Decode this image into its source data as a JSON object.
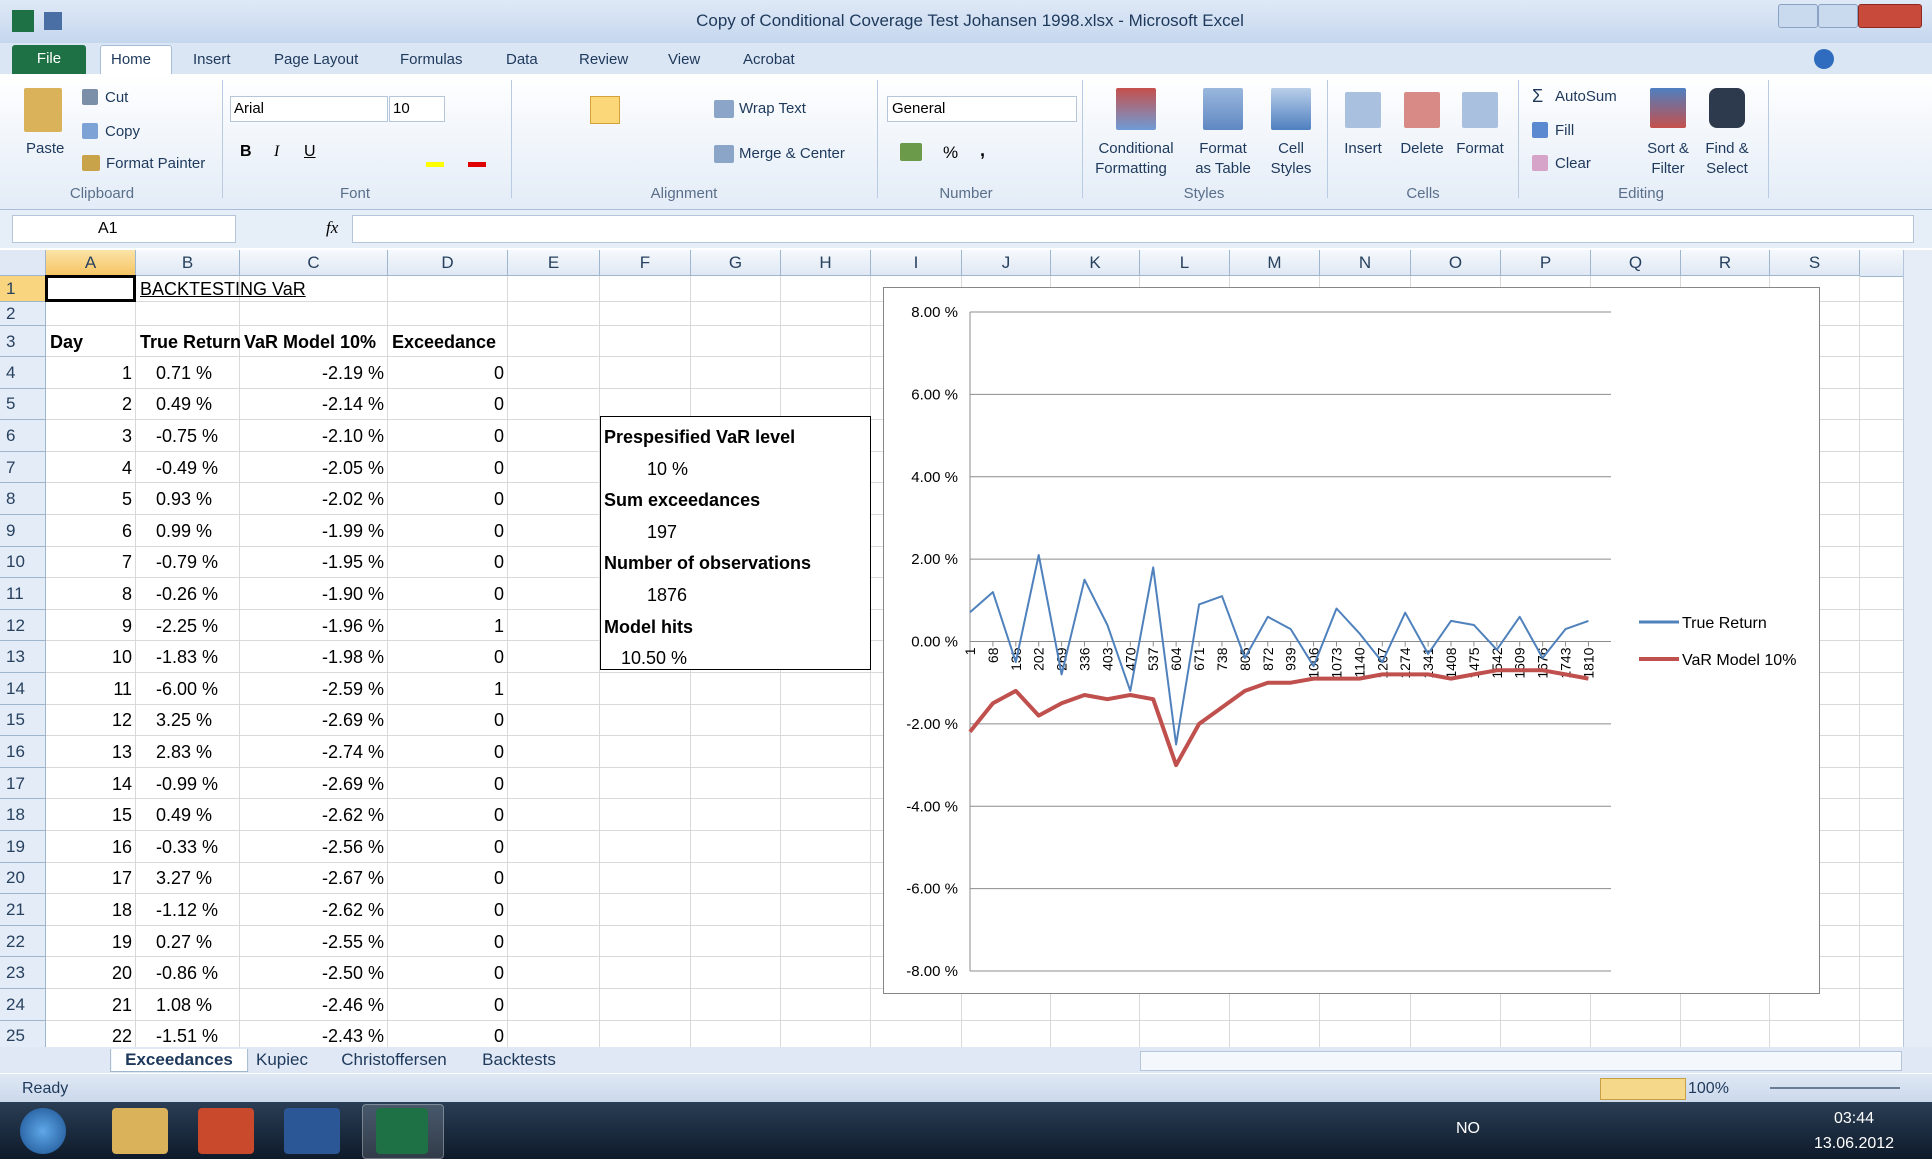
{
  "window": {
    "title": "Copy of Conditional Coverage Test Johansen 1998.xlsx - Microsoft Excel"
  },
  "tabs": [
    "File",
    "Home",
    "Insert",
    "Page Layout",
    "Formulas",
    "Data",
    "Review",
    "View",
    "Acrobat"
  ],
  "ribbon": {
    "clipboard": {
      "label": "Clipboard",
      "paste": "Paste",
      "cut": "Cut",
      "copy": "Copy",
      "format_painter": "Format Painter"
    },
    "font": {
      "label": "Font",
      "name": "Arial",
      "size": "10",
      "bold": "B",
      "italic": "I",
      "underline": "U"
    },
    "alignment": {
      "label": "Alignment",
      "wrap": "Wrap Text",
      "merge": "Merge & Center"
    },
    "number": {
      "label": "Number",
      "format": "General",
      "percent": "%",
      "comma": ","
    },
    "styles": {
      "label": "Styles",
      "conditional": [
        "Conditional",
        "Formatting"
      ],
      "format_table": [
        "Format",
        "as Table"
      ],
      "cell_styles": [
        "Cell",
        "Styles"
      ]
    },
    "cells": {
      "label": "Cells",
      "insert": "Insert",
      "delete": "Delete",
      "format": "Format"
    },
    "editing": {
      "label": "Editing",
      "autosum": "AutoSum",
      "fill": "Fill",
      "clear": "Clear",
      "sort": [
        "Sort &",
        "Filter"
      ],
      "find": [
        "Find &",
        "Select"
      ]
    }
  },
  "formula_bar": {
    "name_box": "A1",
    "fx": "fx"
  },
  "sheet": {
    "columns": [
      "A",
      "B",
      "C",
      "D",
      "E",
      "F",
      "G",
      "H",
      "I",
      "J",
      "K",
      "L",
      "M",
      "N",
      "O",
      "P",
      "Q",
      "R",
      "S"
    ],
    "row_numbers": [
      1,
      2,
      3,
      4,
      5,
      6,
      7,
      8,
      9,
      10,
      11,
      12,
      13,
      14,
      15,
      16,
      17,
      18,
      19,
      20,
      21,
      22,
      23,
      24,
      25
    ],
    "title": "BACKTESTING VaR",
    "header": [
      "Day",
      "True Return",
      "VaR Model 10%",
      "Exceedance"
    ],
    "rows": [
      [
        1,
        "0.71 %",
        "-2.19 %",
        0
      ],
      [
        2,
        "0.49 %",
        "-2.14 %",
        0
      ],
      [
        3,
        "-0.75 %",
        "-2.10 %",
        0
      ],
      [
        4,
        "-0.49 %",
        "-2.05 %",
        0
      ],
      [
        5,
        "0.93 %",
        "-2.02 %",
        0
      ],
      [
        6,
        "0.99 %",
        "-1.99 %",
        0
      ],
      [
        7,
        "-0.79 %",
        "-1.95 %",
        0
      ],
      [
        8,
        "-0.26 %",
        "-1.90 %",
        0
      ],
      [
        9,
        "-2.25 %",
        "-1.96 %",
        1
      ],
      [
        10,
        "-1.83 %",
        "-1.98 %",
        0
      ],
      [
        11,
        "-6.00 %",
        "-2.59 %",
        1
      ],
      [
        12,
        "3.25 %",
        "-2.69 %",
        0
      ],
      [
        13,
        "2.83 %",
        "-2.74 %",
        0
      ],
      [
        14,
        "-0.99 %",
        "-2.69 %",
        0
      ],
      [
        15,
        "0.49 %",
        "-2.62 %",
        0
      ],
      [
        16,
        "-0.33 %",
        "-2.56 %",
        0
      ],
      [
        17,
        "3.27 %",
        "-2.67 %",
        0
      ],
      [
        18,
        "-1.12 %",
        "-2.62 %",
        0
      ],
      [
        19,
        "0.27 %",
        "-2.55 %",
        0
      ],
      [
        20,
        "-0.86 %",
        "-2.50 %",
        0
      ],
      [
        21,
        "1.08 %",
        "-2.46 %",
        0
      ],
      [
        22,
        "-1.51 %",
        "-2.43 %",
        0
      ]
    ],
    "textbox": [
      {
        "label": "Prespesified VaR level",
        "value": "10 %"
      },
      {
        "label": "Sum exceedances",
        "value": "197"
      },
      {
        "label": "Number of observations",
        "value": "1876"
      },
      {
        "label": "Model hits",
        "value": "10.50 %"
      }
    ],
    "tabs": [
      "Exceedances",
      "Kupiec",
      "Christoffersen",
      "Backtests"
    ]
  },
  "status": {
    "text": "Ready",
    "zoom": "100%"
  },
  "taskbar": {
    "language": "NO",
    "time": "03:44",
    "date": "13.06.2012"
  },
  "chart_data": {
    "type": "line",
    "x": [
      1,
      68,
      135,
      202,
      269,
      336,
      403,
      470,
      537,
      604,
      671,
      738,
      805,
      872,
      939,
      1006,
      1073,
      1140,
      1207,
      1274,
      1341,
      1408,
      1475,
      1542,
      1609,
      1676,
      1743,
      1810
    ],
    "xlim": [
      1,
      1876
    ],
    "series": [
      {
        "name": "True Return",
        "color": "#4f81bd",
        "values": [
          0.71,
          1.2,
          -0.5,
          2.1,
          -0.8,
          1.5,
          0.4,
          -1.2,
          1.8,
          -2.5,
          0.9,
          1.1,
          -0.4,
          0.6,
          0.3,
          -0.6,
          0.8,
          0.2,
          -0.5,
          0.7,
          -0.3,
          0.5,
          0.4,
          -0.2,
          0.6,
          -0.4,
          0.3,
          0.5
        ]
      },
      {
        "name": "VaR Model 10%",
        "color": "#c0504d",
        "values": [
          -2.19,
          -1.5,
          -1.2,
          -1.8,
          -1.5,
          -1.3,
          -1.4,
          -1.3,
          -1.4,
          -3.0,
          -2.0,
          -1.6,
          -1.2,
          -1.0,
          -1.0,
          -0.9,
          -0.9,
          -0.9,
          -0.8,
          -0.8,
          -0.8,
          -0.9,
          -0.8,
          -0.7,
          -0.7,
          -0.7,
          -0.8,
          -0.9
        ]
      }
    ],
    "ylim": [
      -8,
      8
    ],
    "yticks": [
      {
        "value": 8,
        "label": "8.00 %"
      },
      {
        "value": 6,
        "label": "6.00 %"
      },
      {
        "value": 4,
        "label": "4.00 %"
      },
      {
        "value": 2,
        "label": "2.00 %"
      },
      {
        "value": 0,
        "label": "0.00 %"
      },
      {
        "value": -2,
        "label": "-2.00 %"
      },
      {
        "value": -4,
        "label": "-4.00 %"
      },
      {
        "value": -6,
        "label": "-6.00 %"
      },
      {
        "value": -8,
        "label": "-8.00 %"
      }
    ],
    "grid": true,
    "legend": "right"
  }
}
